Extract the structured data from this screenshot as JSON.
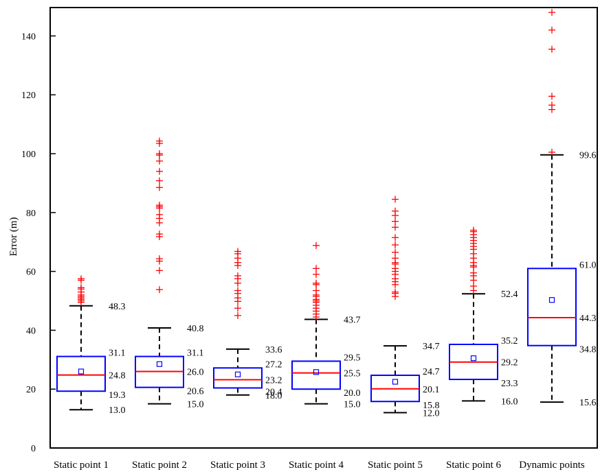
{
  "chart_data": {
    "type": "box",
    "ylabel": "Error (m)",
    "ylim": [
      0,
      150
    ],
    "yticks": [
      0,
      20,
      40,
      60,
      80,
      100,
      120,
      140
    ],
    "grid": false,
    "legend": "none",
    "colors": {
      "box": "#0000ff",
      "median": "#ff0000",
      "outlier": "#ff0000",
      "whisker": "#000000",
      "mean": "#0000ff"
    },
    "categories": [
      "Static point 1",
      "Static point 2",
      "Static point 3",
      "Static point 4",
      "Static point 5",
      "Static point 6",
      "Dynamic points"
    ],
    "boxes": [
      {
        "whisker_low": 13.0,
        "q1": 19.3,
        "median": 24.8,
        "q3": 31.1,
        "whisker_high": 48.3,
        "mean": 26.0,
        "labels": {
          "whisker_low": "13.0",
          "q1": "19.3",
          "median": "24.8",
          "q3": "31.1",
          "whisker_high": "48.3"
        },
        "outliers": [
          49.5,
          50.0,
          50.5,
          51.0,
          51.5,
          52.0,
          53.0,
          54.0,
          54.5,
          57.0,
          57.5
        ]
      },
      {
        "whisker_low": 15.0,
        "q1": 20.6,
        "median": 26.0,
        "q3": 31.1,
        "whisker_high": 40.8,
        "mean": 28.5,
        "labels": {
          "whisker_low": "15.0",
          "q1": "20.6",
          "median": "26.0",
          "q3": "31.1",
          "whisker_high": "40.8"
        },
        "outliers": [
          53.8,
          60.3,
          63.5,
          64.3,
          71.8,
          72.7,
          76.5,
          78.0,
          79.3,
          81.5,
          82.0,
          82.5,
          88.5,
          90.8,
          94.0,
          97.5,
          99.5,
          100.0,
          103.5,
          104.3
        ]
      },
      {
        "whisker_low": 18.0,
        "q1": 20.4,
        "median": 23.2,
        "q3": 27.2,
        "whisker_high": 33.6,
        "mean": 25.0,
        "labels": {
          "whisker_low": "18.0",
          "q1": "20.4",
          "median": "23.2",
          "q3": "27.2",
          "whisker_high": "33.6"
        },
        "outliers": [
          45.0,
          47.5,
          49.8,
          51.0,
          52.5,
          53.5,
          56.0,
          57.5,
          58.5,
          62.0,
          63.0,
          64.5,
          66.0,
          66.8
        ]
      },
      {
        "whisker_low": 15.0,
        "q1": 20.0,
        "median": 25.5,
        "q3": 29.5,
        "whisker_high": 43.7,
        "mean": 25.8,
        "labels": {
          "whisker_low": "15.0",
          "q1": "20.0",
          "median": "25.5",
          "q3": "29.5",
          "whisker_high": "43.7"
        },
        "outliers": [
          44.5,
          45.5,
          46.5,
          47.5,
          48.5,
          49.5,
          50.0,
          50.5,
          51.5,
          52.0,
          53.5,
          55.5,
          56.0,
          59.0,
          61.0,
          68.8
        ]
      },
      {
        "whisker_low": 12.0,
        "q1": 15.8,
        "median": 20.1,
        "q3": 24.7,
        "whisker_high": 34.7,
        "mean": 22.5,
        "labels": {
          "whisker_low": "12.0",
          "q1": "15.8",
          "median": "20.1",
          "q3": "24.7",
          "whisker_high": "34.7"
        },
        "outliers": [
          51.5,
          52.5,
          53.0,
          55.5,
          56.5,
          57.5,
          59.0,
          60.0,
          61.0,
          62.5,
          63.0,
          64.5,
          66.5,
          69.0,
          71.5,
          75.0,
          77.0,
          79.0,
          80.5,
          84.5
        ]
      },
      {
        "whisker_low": 16.0,
        "q1": 23.3,
        "median": 29.2,
        "q3": 35.2,
        "whisker_high": 52.4,
        "mean": 30.5,
        "labels": {
          "whisker_low": "16.0",
          "q1": "23.3",
          "median": "29.2",
          "q3": "35.2",
          "whisker_high": "52.4"
        },
        "outliers": [
          53.5,
          55.0,
          57.0,
          58.5,
          59.5,
          61.5,
          62.0,
          63.0,
          64.5,
          66.0,
          67.5,
          68.5,
          69.5,
          70.5,
          71.5,
          72.5,
          73.5,
          74.0
        ]
      },
      {
        "whisker_low": 15.6,
        "q1": 34.8,
        "median": 44.3,
        "q3": 61.0,
        "whisker_high": 99.6,
        "mean": 50.3,
        "labels": {
          "whisker_low": "15.6",
          "q1": "34.8",
          "median": "44.3",
          "q3": "61.0",
          "whisker_high": "99.6"
        },
        "outliers": [
          100.5,
          115.0,
          116.5,
          119.5,
          135.5,
          142.0,
          148.0
        ]
      }
    ]
  }
}
